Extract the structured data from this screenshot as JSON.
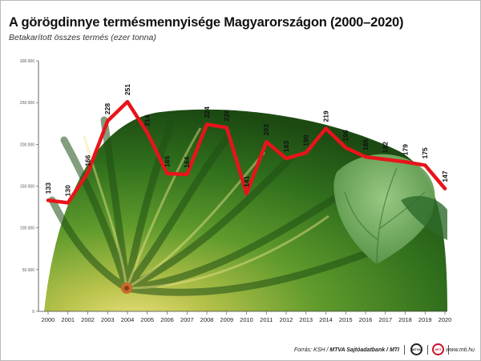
{
  "title": "A görögdinnye termésmennyisége Magyarországon (2000–2020)",
  "subtitle": "Betakarított összes termés (ezer tonna)",
  "footer": {
    "source_prefix": "Forrás: KSH / ",
    "source_bold": "MTVA Sajtóadatbank / MTI",
    "logo1": "MTVA",
    "logo2": "MTI",
    "domain": "www.mti.hu"
  },
  "colors": {
    "line": "#e8141b",
    "axis": "#444444",
    "tick": "#555555"
  },
  "chart_data": {
    "type": "line",
    "title": "A görögdinnye termésmennyisége Magyarországon (2000–2020)",
    "subtitle": "Betakarított összes termés (ezer tonna)",
    "x": [
      "2000",
      "2001",
      "2002",
      "2003",
      "2004",
      "2005",
      "2006",
      "2007",
      "2008",
      "2009",
      "2010",
      "2011",
      "2012",
      "2013",
      "2014",
      "2015",
      "2016",
      "2017",
      "2018",
      "2019",
      "2020"
    ],
    "series": [
      {
        "values": [
          133,
          130,
          166,
          228,
          251,
          214,
          165,
          164,
          224,
          220,
          141,
          203,
          183,
          190,
          219,
          196,
          185,
          182,
          179,
          175,
          147
        ]
      }
    ],
    "y_ticks": [
      0,
      50000,
      100000,
      150000,
      200000,
      250000,
      300000
    ],
    "y_tick_labels": [
      "0",
      "50 000",
      "100 000",
      "150 000",
      "200 000",
      "250 000",
      "300 000"
    ],
    "ylim": [
      0,
      300000
    ],
    "value_unit_multiplier": 1000,
    "grid": false,
    "legend": "none",
    "background": "watermelon photo"
  }
}
